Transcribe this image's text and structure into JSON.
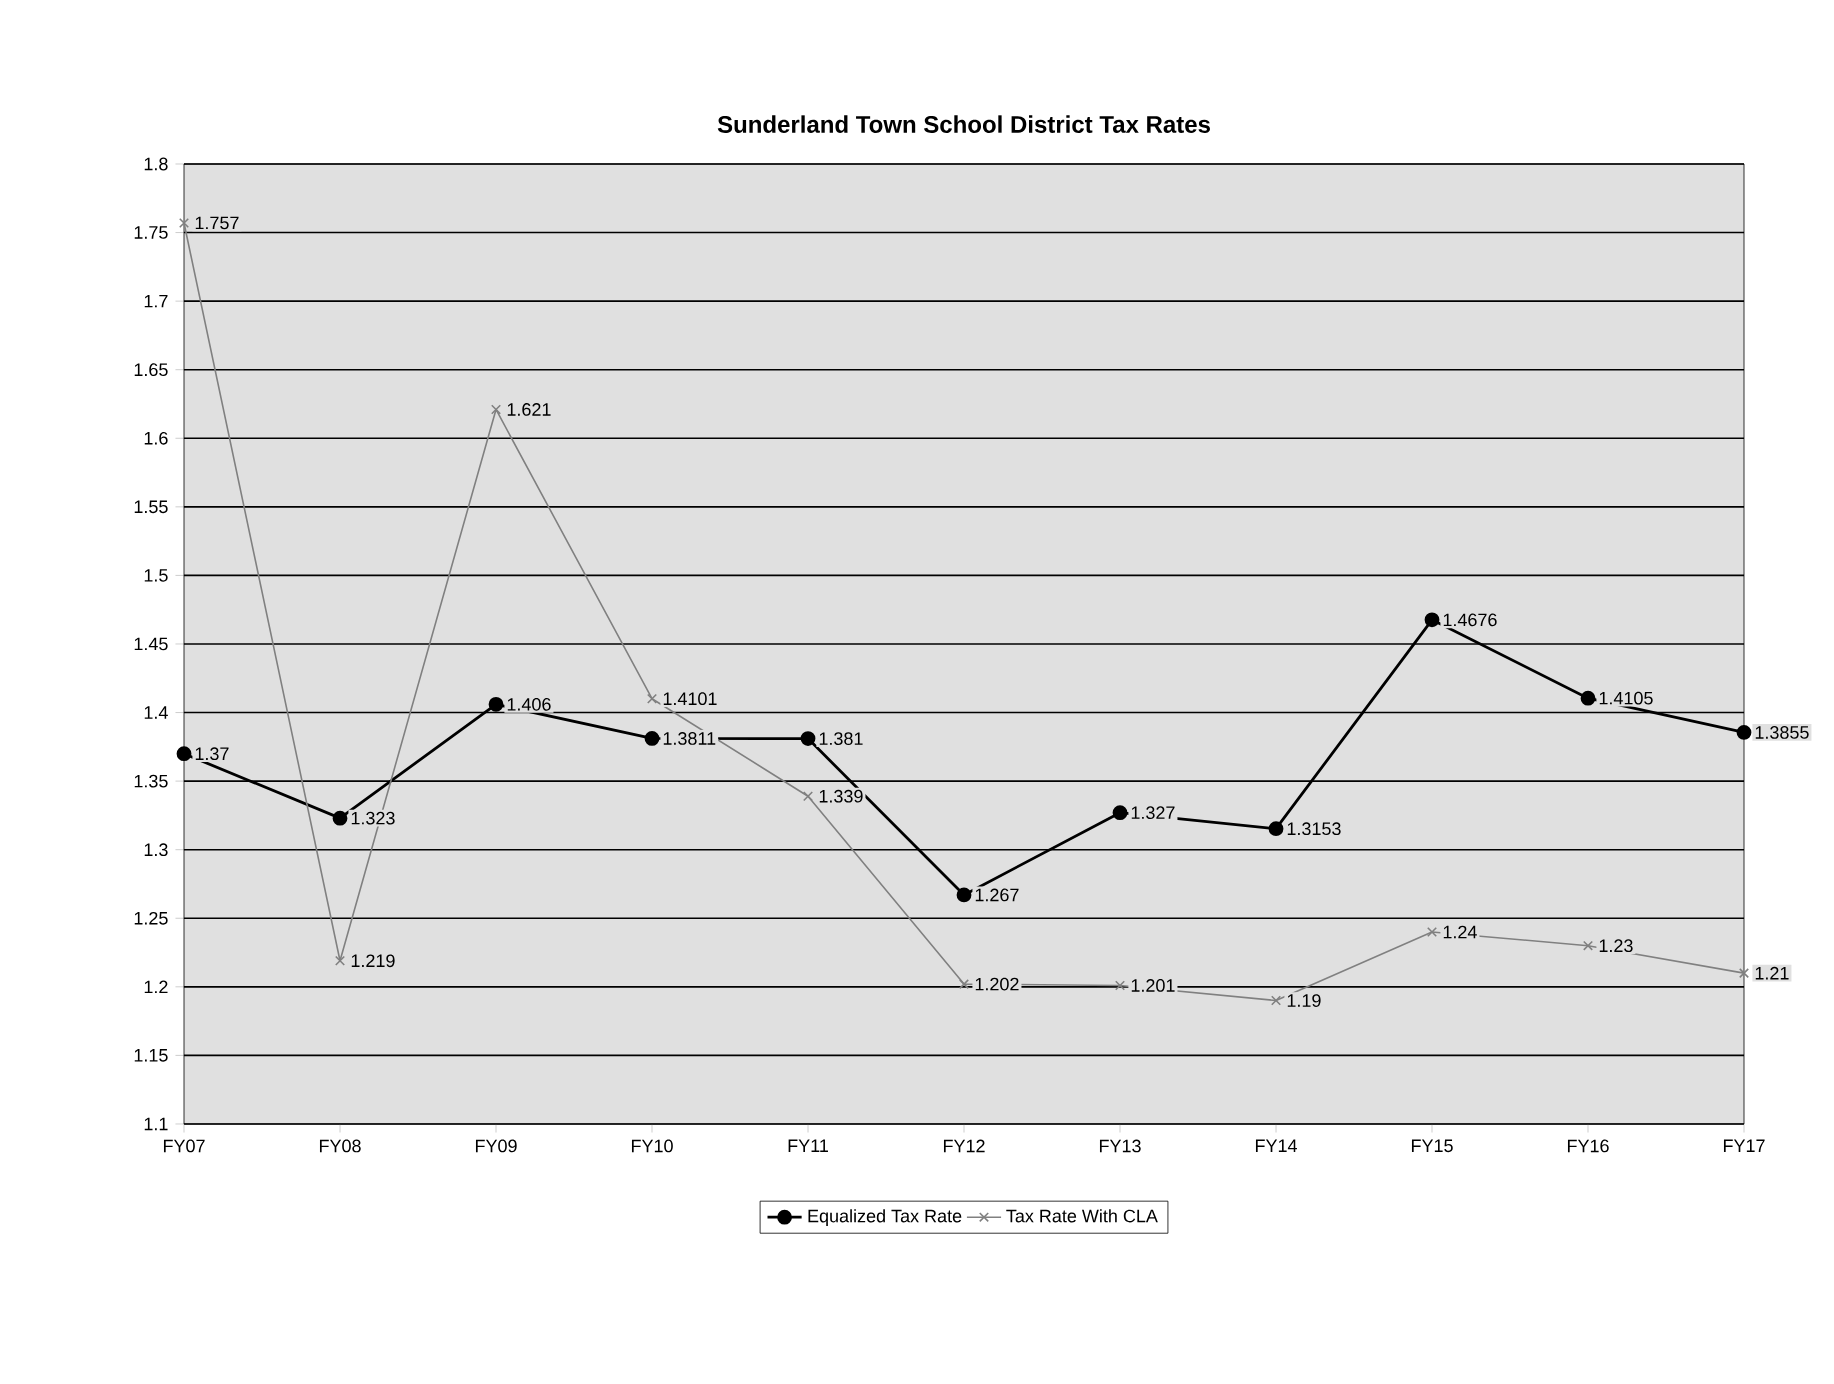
{
  "chart_data": {
    "type": "line",
    "title": "Sunderland Town School District Tax Rates",
    "categories": [
      "FY07",
      "FY08",
      "FY09",
      "FY10",
      "FY11",
      "FY12",
      "FY13",
      "FY14",
      "FY15",
      "FY16",
      "FY17"
    ],
    "series": [
      {
        "name": "Equalized Tax Rate",
        "color": "#000000",
        "marker": "circle",
        "values": [
          1.37,
          1.323,
          1.406,
          1.3811,
          1.381,
          1.267,
          1.327,
          1.3153,
          1.4676,
          1.4105,
          1.3855
        ]
      },
      {
        "name": "Tax Rate With CLA",
        "color": "#808080",
        "marker": "cross",
        "values": [
          1.757,
          1.219,
          1.621,
          1.4101,
          1.339,
          1.202,
          1.201,
          1.19,
          1.24,
          1.23,
          1.21
        ]
      }
    ],
    "ylim": [
      1.1,
      1.8
    ],
    "yticks": [
      1.1,
      1.15,
      1.2,
      1.25,
      1.3,
      1.35,
      1.4,
      1.45,
      1.5,
      1.55,
      1.6,
      1.65,
      1.7,
      1.75,
      1.8
    ],
    "grid": "y",
    "legend": "bottom",
    "data_labels": true
  }
}
